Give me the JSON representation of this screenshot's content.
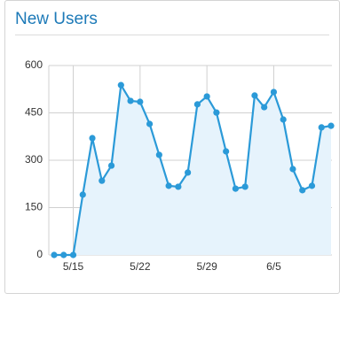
{
  "chart_data": {
    "type": "line",
    "title": "New Users",
    "categories": [
      null,
      null,
      "5/15",
      null,
      null,
      null,
      null,
      null,
      null,
      "5/22",
      null,
      null,
      null,
      null,
      null,
      null,
      "5/29",
      null,
      null,
      null,
      null,
      null,
      null,
      "6/5",
      null,
      null,
      null,
      null,
      null,
      null
    ],
    "series": [
      {
        "color": "#2b9ad8",
        "values": [
          0,
          0,
          0,
          191,
          370,
          235,
          283,
          538,
          488,
          485,
          415,
          317,
          219,
          216,
          261,
          477,
          502,
          451,
          328,
          210,
          216,
          505,
          468,
          516,
          429,
          272,
          205,
          219,
          404,
          409
        ]
      }
    ],
    "ylim": [
      0,
      600
    ],
    "yticks": [
      0,
      150,
      300,
      450,
      600
    ],
    "grid": true,
    "area": true,
    "area_color": "#e6f3fc"
  }
}
